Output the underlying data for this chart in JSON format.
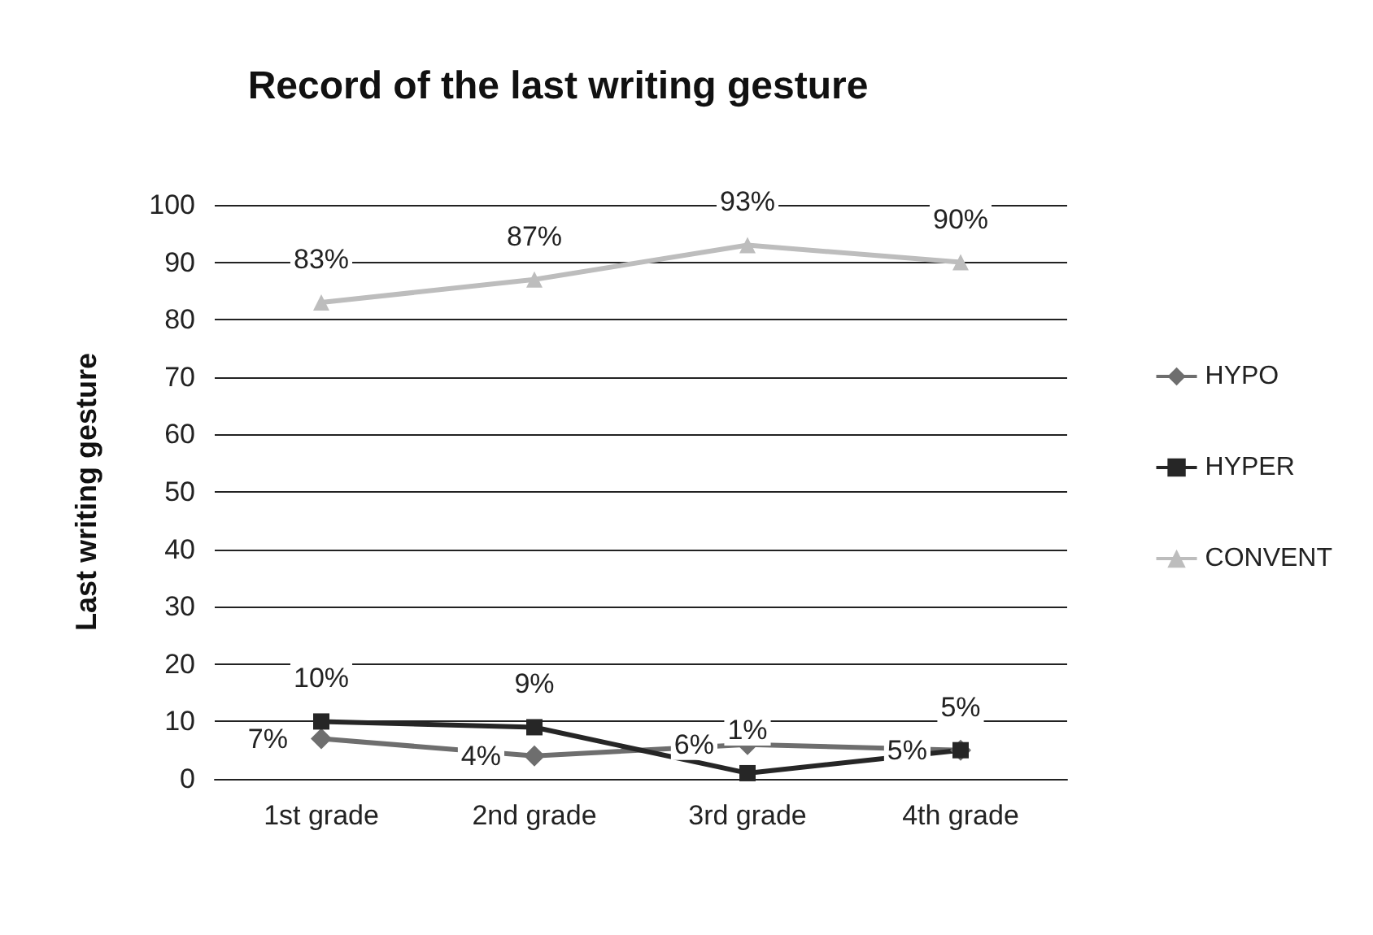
{
  "chart_data": {
    "type": "line",
    "title": "Record of the last writing gesture",
    "ylabel": "Last writing gesture",
    "categories": [
      "1st grade",
      "2nd grade",
      "3rd grade",
      "4th grade"
    ],
    "series": [
      {
        "name": "HYPO",
        "color": "#6e6e6e",
        "marker": "diamond",
        "values": [
          7,
          4,
          6,
          5
        ],
        "value_labels": [
          "7%",
          "4%",
          "6%",
          "5%"
        ]
      },
      {
        "name": "HYPER",
        "color": "#262626",
        "marker": "square",
        "values": [
          10,
          9,
          1,
          5
        ],
        "value_labels": [
          "10%",
          "9%",
          "1%",
          "5%"
        ]
      },
      {
        "name": "CONVENT",
        "color": "#bdbdbd",
        "marker": "triangle",
        "values": [
          83,
          87,
          93,
          90
        ],
        "value_labels": [
          "83%",
          "87%",
          "93%",
          "90%"
        ]
      }
    ],
    "ylim": [
      0,
      100
    ],
    "yticks": [
      0,
      10,
      20,
      30,
      40,
      50,
      60,
      70,
      80,
      90,
      100
    ],
    "grid": "y",
    "legend": "right",
    "line_style": "solid"
  }
}
